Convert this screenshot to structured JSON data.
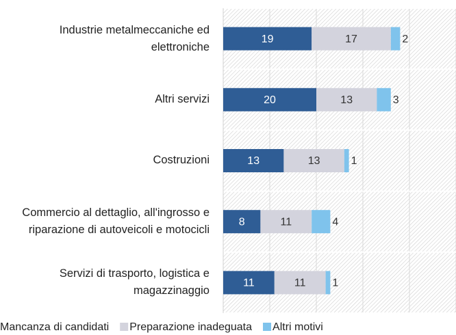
{
  "chart_data": {
    "type": "stacked_barh",
    "categories": [
      "Industrie metalmeccaniche ed elettroniche",
      "Altri servizi",
      "Costruzioni",
      "Commercio al dettaglio, all'ingrosso e riparazione di autoveicoli e motocicli",
      "Servizi di trasporto, logistica e magazzinaggio"
    ],
    "series": [
      {
        "name": "Mancanza di candidati",
        "color": "#2f5d95",
        "values": [
          19,
          20,
          13,
          8,
          11
        ]
      },
      {
        "name": "Preparazione inadeguata",
        "color": "#d3d3dd",
        "values": [
          17,
          13,
          13,
          11,
          11
        ]
      },
      {
        "name": "Altri motivi",
        "color": "#7fc3ec",
        "values": [
          2,
          3,
          1,
          4,
          1
        ]
      }
    ],
    "xlim": [
      0,
      50
    ],
    "xticks": [
      0,
      10,
      20,
      30,
      40,
      50
    ],
    "grid": true,
    "legend": "bottom"
  }
}
